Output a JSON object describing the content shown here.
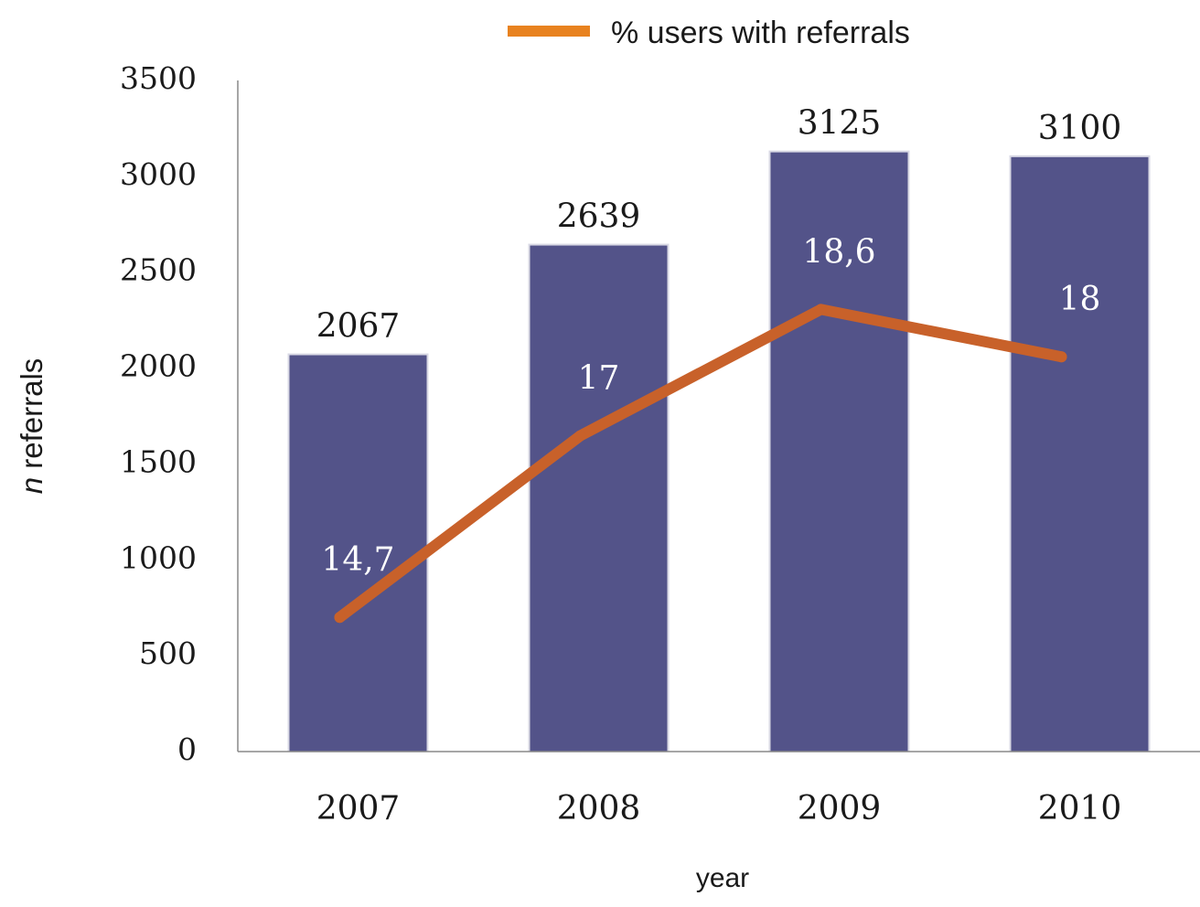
{
  "chart_data": {
    "type": "bar",
    "categories": [
      "2007",
      "2008",
      "2009",
      "2010"
    ],
    "series": [
      {
        "type": "bar",
        "values": [
          2067,
          2639,
          3125,
          3100
        ],
        "data_labels": [
          "2067",
          "2639",
          "3125",
          "3100"
        ],
        "axis": "left",
        "color": "#535389"
      },
      {
        "type": "line",
        "name": "% users with referrals",
        "values": [
          14.7,
          17,
          18.6,
          18
        ],
        "data_labels": [
          "14,7",
          "17",
          "18,6",
          "18"
        ],
        "axis": "secondary",
        "color": "#C8612A"
      }
    ],
    "xlabel": "year",
    "ylabel_italic": "n",
    "ylabel_rest": " referrals",
    "ylim": [
      0,
      3500
    ],
    "yticks": [
      "0",
      "500",
      "1000",
      "1500",
      "2000",
      "2500",
      "3000",
      "3500"
    ],
    "secondary_ylim": [
      13.0,
      21.5
    ],
    "legend_position": "top",
    "legend_color": "#E8821F",
    "grid": false
  }
}
